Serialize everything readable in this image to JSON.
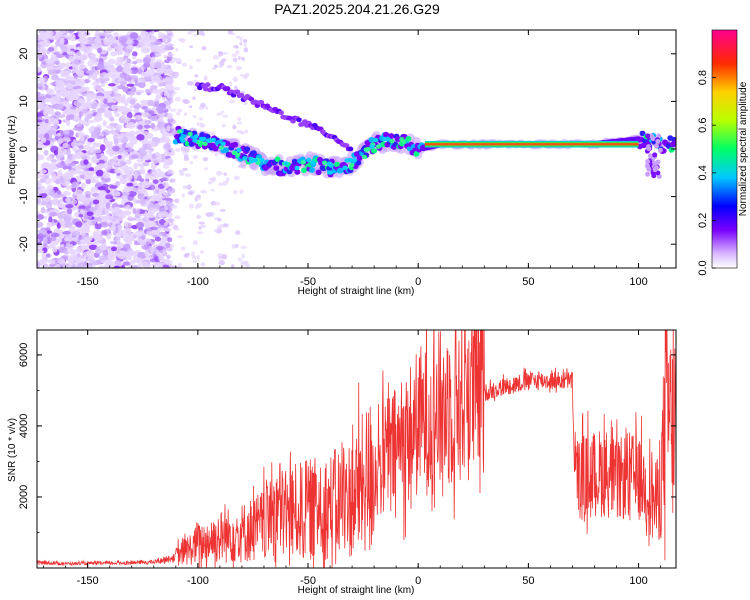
{
  "chart_data": [
    {
      "type": "heatmap",
      "title": "PAZ1.2025.204.21.26.G29",
      "xlabel": "Height of straight line (km)",
      "ylabel": "Frequency (Hz)",
      "xlim": [
        -173,
        117
      ],
      "ylim": [
        -25,
        25
      ],
      "xticks": [
        -150,
        -100,
        -50,
        0,
        50,
        100
      ],
      "yticks": [
        -20,
        -10,
        0,
        10,
        20
      ],
      "colorbar": {
        "label": "Normalized spectral amplitude",
        "range": [
          0,
          1
        ],
        "ticks": [
          "0.0",
          "0.2",
          "0.4",
          "0.6",
          "0.8"
        ],
        "colormap": "rainbow (violet to magenta)"
      },
      "ridge": {
        "x": [
          -110,
          -100,
          -90,
          -80,
          -70,
          -60,
          -50,
          -40,
          -30,
          -20,
          -10,
          0,
          10,
          20,
          40,
          60,
          80,
          100,
          110,
          117
        ],
        "freq_hz": [
          3,
          2,
          1,
          -1,
          -3,
          -4,
          -3,
          -4,
          -3,
          1,
          2,
          0,
          1,
          1,
          1,
          1,
          1,
          2,
          1,
          1
        ]
      },
      "upper_branch": {
        "x": [
          -100,
          -90,
          -80,
          -70,
          -60,
          -50,
          -40,
          -30
        ],
        "freq_hz": [
          13,
          13,
          11,
          9,
          7,
          5,
          3,
          0
        ]
      },
      "noise_region_x": [
        -173,
        -112
      ]
    },
    {
      "type": "line",
      "xlabel": "Height of straight line (km)",
      "ylabel": "SNR (10 * v/v)",
      "xlim": [
        -173,
        117
      ],
      "ylim": [
        0,
        6700
      ],
      "xticks": [
        -150,
        -100,
        -50,
        0,
        50,
        100
      ],
      "yticks": [
        2000,
        4000,
        6000
      ],
      "color": "#ee3333",
      "series": [
        {
          "x": [
            -173,
            -160,
            -140,
            -120,
            -110,
            -100,
            -90,
            -80,
            -70,
            -65,
            -60,
            -50,
            -40,
            -30,
            -20,
            -15,
            -10,
            -5,
            0,
            10,
            20,
            30,
            40,
            50,
            60,
            70,
            71,
            72,
            80,
            85,
            90,
            95,
            100,
            105,
            108,
            110,
            113,
            117
          ],
          "y": [
            150,
            120,
            130,
            160,
            300,
            600,
            800,
            900,
            1100,
            1600,
            1400,
            1500,
            1600,
            1800,
            2500,
            3000,
            3200,
            3500,
            3900,
            4200,
            4600,
            4900,
            5100,
            5250,
            5250,
            5250,
            2500,
            2400,
            2500,
            2600,
            2300,
            2500,
            2400,
            2100,
            1600,
            2300,
            4200,
            3200
          ]
        }
      ]
    }
  ]
}
